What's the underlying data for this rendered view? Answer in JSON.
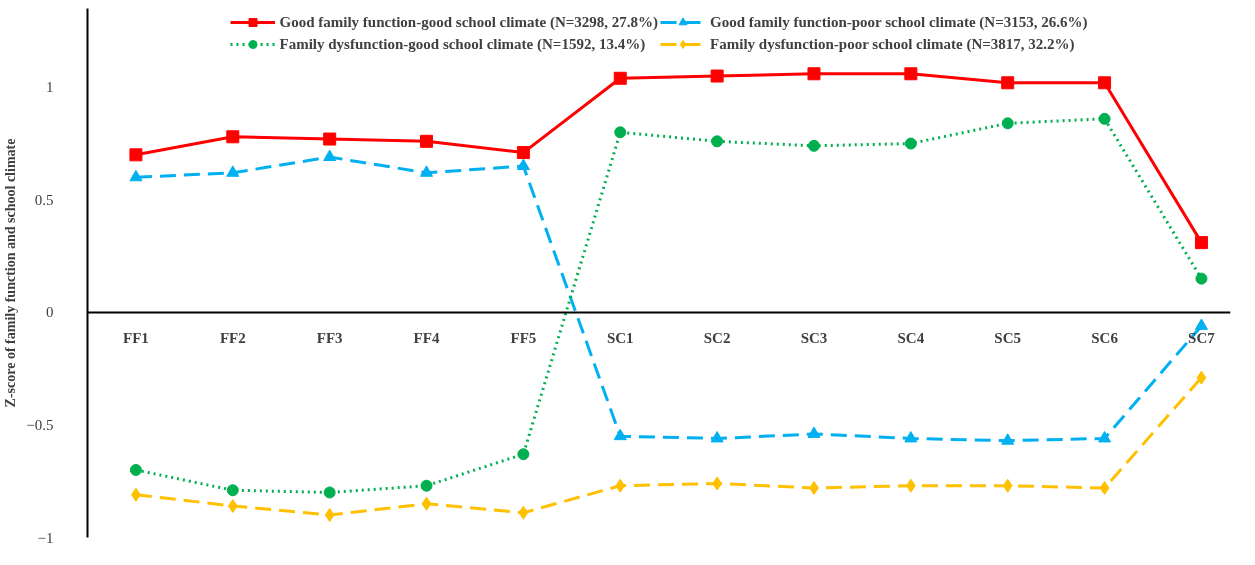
{
  "chart_data": {
    "type": "line",
    "ylabel": "Z-score of family function and school climate",
    "categories": [
      "FF1",
      "FF2",
      "FF3",
      "FF4",
      "FF5",
      "SC1",
      "SC2",
      "SC3",
      "SC4",
      "SC5",
      "SC6",
      "SC7"
    ],
    "ylim": [
      -1,
      1.35
    ],
    "yticks": [
      -1,
      -0.5,
      0,
      0.5,
      1
    ],
    "grid": false,
    "legend": "top",
    "series": [
      {
        "name": "Good family function-good school climate (N=3298, 27.8%)",
        "color": "#ff0000",
        "marker": "square",
        "line_style": "solid",
        "values": [
          0.7,
          0.78,
          0.77,
          0.76,
          0.71,
          1.04,
          1.05,
          1.06,
          1.06,
          1.02,
          1.02,
          0.31
        ]
      },
      {
        "name": "Good family function-poor school climate (N=3153, 26.6%)",
        "color": "#00b0f0",
        "marker": "triangle",
        "line_style": "dashed",
        "values": [
          0.6,
          0.62,
          0.69,
          0.62,
          0.65,
          -0.55,
          -0.56,
          -0.54,
          -0.56,
          -0.57,
          -0.56,
          -0.06
        ]
      },
      {
        "name": "Family dysfunction-good school climate (N=1592, 13.4%)",
        "color": "#00b050",
        "marker": "circle",
        "line_style": "dotted",
        "values": [
          -0.7,
          -0.79,
          -0.8,
          -0.77,
          -0.63,
          0.8,
          0.76,
          0.74,
          0.75,
          0.84,
          0.86,
          0.15
        ]
      },
      {
        "name": "Family dysfunction-poor school climate (N=3817, 32.2%)",
        "color": "#ffc000",
        "marker": "diamond",
        "line_style": "dashed",
        "values": [
          -0.81,
          -0.86,
          -0.9,
          -0.85,
          -0.89,
          -0.77,
          -0.76,
          -0.78,
          -0.77,
          -0.77,
          -0.78,
          -0.29
        ]
      }
    ]
  }
}
